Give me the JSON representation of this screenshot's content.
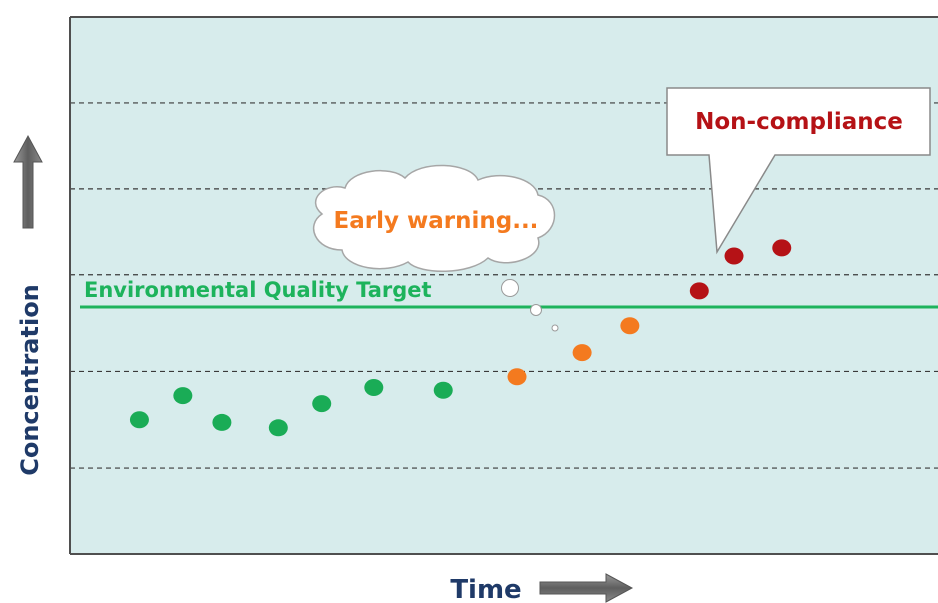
{
  "chart_data": {
    "type": "scatter",
    "xlabel": "Time",
    "ylabel": "Concentration",
    "xlim": [
      0,
      100
    ],
    "ylim": [
      0,
      100
    ],
    "grid": "horizontal dashed",
    "gridlines_y": [
      16,
      34,
      52,
      68,
      84
    ],
    "threshold": {
      "label": "Environmental Quality Target",
      "value": 46,
      "color": "#1db35c"
    },
    "series": [
      {
        "color": "#1aac56",
        "points": [
          {
            "x": 8,
            "y": 25
          },
          {
            "x": 13,
            "y": 29.5
          },
          {
            "x": 17.5,
            "y": 24.5
          },
          {
            "x": 24,
            "y": 23.5
          },
          {
            "x": 29,
            "y": 28
          },
          {
            "x": 35,
            "y": 31
          },
          {
            "x": 43,
            "y": 30.5
          }
        ]
      },
      {
        "color": "#f47a1f",
        "points": [
          {
            "x": 51.5,
            "y": 33
          },
          {
            "x": 59,
            "y": 37.5
          },
          {
            "x": 64.5,
            "y": 42.5
          }
        ]
      },
      {
        "color": "#b51216",
        "points": [
          {
            "x": 72.5,
            "y": 49
          },
          {
            "x": 76.5,
            "y": 55.5
          },
          {
            "x": 82,
            "y": 57
          }
        ]
      }
    ],
    "annotations": [
      {
        "text": "Early warning...",
        "color": "#f47a1f",
        "shape": "cloud"
      },
      {
        "text": "Non-compliance",
        "color": "#b51216",
        "shape": "speech-callout"
      }
    ]
  },
  "colors": {
    "plot_bg": "#d7ecec",
    "frame": "#4f4f4f",
    "axis_text": "#1f3a68",
    "arrow_fill": "#6e6e6e"
  }
}
